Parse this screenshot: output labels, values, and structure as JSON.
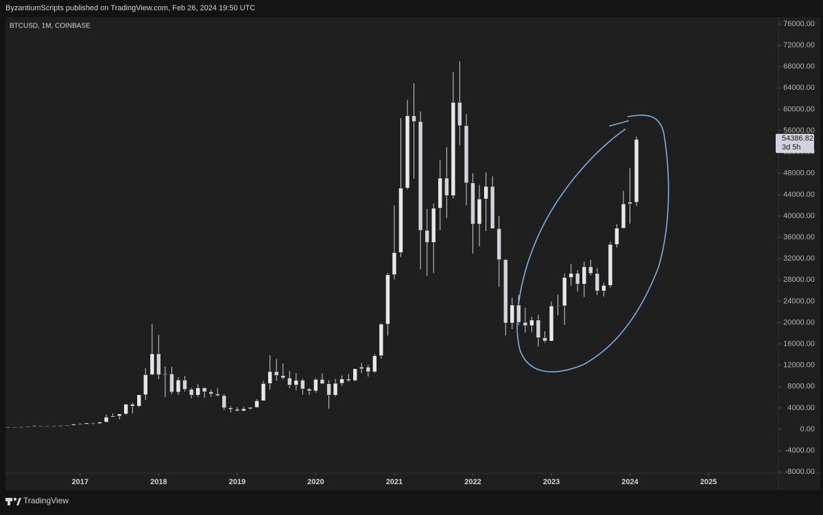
{
  "header": {
    "text": "ByzantiumScripts published on TradingView.com, Feb 26, 2024 19:50 UTC"
  },
  "footer": {
    "brand": "TradingView"
  },
  "chart_data": {
    "type": "candlestick",
    "title": "BTCUSD, 1M, COINBASE",
    "up_color": "#e8e8ec",
    "down_color": "#d1d4dc",
    "wick_color": "#d1d4dc",
    "grid": false,
    "xlim": [
      2016.05,
      2025.89
    ],
    "xticks": [
      2017,
      2018,
      2019,
      2020,
      2021,
      2022,
      2023,
      2024,
      2025
    ],
    "ylim": [
      -8230,
      77290
    ],
    "yticks": [
      {
        "value": -8000,
        "label": "-8000.00"
      },
      {
        "value": -4000,
        "label": "-4000.00"
      },
      {
        "value": 0,
        "label": "0.00"
      },
      {
        "value": 4000,
        "label": "4000.00"
      },
      {
        "value": 8000,
        "label": "8000.00"
      },
      {
        "value": 12000,
        "label": "12000.00"
      },
      {
        "value": 16000,
        "label": "16000.00"
      },
      {
        "value": 20000,
        "label": "20000.00"
      },
      {
        "value": 24000,
        "label": "24000.00"
      },
      {
        "value": 28000,
        "label": "28000.00"
      },
      {
        "value": 32000,
        "label": "32000.00"
      },
      {
        "value": 36000,
        "label": "36000.00"
      },
      {
        "value": 40000,
        "label": "40000.00"
      },
      {
        "value": 44000,
        "label": "44000.00"
      },
      {
        "value": 48000,
        "label": "48000.00"
      },
      {
        "value": 52000,
        "label": "52000.00"
      },
      {
        "value": 56000,
        "label": "56000.00"
      },
      {
        "value": 60000,
        "label": "60000.00"
      },
      {
        "value": 64000,
        "label": "64000.00"
      },
      {
        "value": 68000,
        "label": "68000.00"
      },
      {
        "value": 72000,
        "label": "72000.00"
      },
      {
        "value": 76000,
        "label": "76000.00"
      }
    ],
    "last_price": {
      "value": 54386.82,
      "label": "54386.82"
    },
    "countdown": "3d 5h",
    "x": [
      2016.083,
      2016.167,
      2016.25,
      2016.333,
      2016.417,
      2016.5,
      2016.583,
      2016.667,
      2016.75,
      2016.833,
      2016.917,
      2017.0,
      2017.083,
      2017.167,
      2017.25,
      2017.333,
      2017.417,
      2017.5,
      2017.583,
      2017.667,
      2017.75,
      2017.833,
      2017.917,
      2018.0,
      2018.083,
      2018.167,
      2018.25,
      2018.333,
      2018.417,
      2018.5,
      2018.583,
      2018.667,
      2018.75,
      2018.833,
      2018.917,
      2019.0,
      2019.083,
      2019.167,
      2019.25,
      2019.333,
      2019.417,
      2019.5,
      2019.583,
      2019.667,
      2019.75,
      2019.833,
      2019.917,
      2020.0,
      2020.083,
      2020.167,
      2020.25,
      2020.333,
      2020.417,
      2020.5,
      2020.583,
      2020.667,
      2020.75,
      2020.833,
      2020.917,
      2021.0,
      2021.083,
      2021.167,
      2021.25,
      2021.333,
      2021.417,
      2021.5,
      2021.583,
      2021.667,
      2021.75,
      2021.833,
      2021.917,
      2022.0,
      2022.083,
      2022.167,
      2022.25,
      2022.333,
      2022.417,
      2022.5,
      2022.583,
      2022.667,
      2022.75,
      2022.833,
      2022.917,
      2023.0,
      2023.083,
      2023.167,
      2023.25,
      2023.333,
      2023.417,
      2023.5,
      2023.583,
      2023.667,
      2023.75,
      2023.833,
      2023.917,
      2024.0,
      2024.083
    ],
    "open": [
      369,
      437,
      416,
      448,
      531,
      673,
      624,
      573,
      609,
      701,
      743,
      964,
      971,
      1191,
      1080,
      1348,
      2286,
      2480,
      2875,
      4703,
      4338,
      6468,
      10233,
      14156,
      10221,
      10397,
      6973,
      9240,
      7494,
      6404,
      7780,
      7037,
      6625,
      6318,
      4017,
      3742,
      3457,
      3854,
      4105,
      5350,
      8574,
      10818,
      10085,
      9630,
      8293,
      9199,
      7569,
      7194,
      9350,
      8543,
      6410,
      8624,
      9446,
      9138,
      11351,
      11655,
      10779,
      13805,
      19713,
      28990,
      33140,
      45240,
      58800,
      57720,
      37300,
      35040,
      41460,
      47100,
      43820,
      61300,
      56950,
      46210,
      38470,
      43190,
      45540,
      37630,
      31800,
      19930,
      23300,
      20050,
      19430,
      20490,
      17170,
      16540,
      23130,
      23150,
      28470,
      29250,
      27220,
      30480,
      29230,
      25930,
      26970,
      34660,
      37720,
      42280,
      42580
    ],
    "high": [
      448,
      439,
      469,
      548,
      779,
      704,
      626,
      628,
      741,
      755,
      979,
      1154,
      1211,
      1290,
      1350,
      2763,
      2980,
      2916,
      4736,
      4975,
      6470,
      11517,
      19783,
      17712,
      11789,
      11711,
      9759,
      9990,
      7760,
      8450,
      7780,
      7410,
      7700,
      6600,
      4310,
      4110,
      4200,
      4140,
      5640,
      9070,
      13880,
      13200,
      12330,
      10950,
      10540,
      9510,
      7750,
      9580,
      10500,
      9190,
      9470,
      10080,
      10390,
      11450,
      12470,
      12080,
      14100,
      19950,
      29300,
      41950,
      58350,
      61790,
      64900,
      59600,
      41330,
      42320,
      50500,
      52940,
      67000,
      69000,
      59120,
      47990,
      45820,
      48190,
      47440,
      40000,
      31960,
      24670,
      25200,
      22800,
      21100,
      21480,
      18390,
      23960,
      25250,
      29190,
      31000,
      29830,
      31430,
      31800,
      30200,
      27490,
      35200,
      38450,
      44700,
      48970,
      54900
    ],
    "low": [
      366,
      393,
      413,
      435,
      511,
      604,
      472,
      570,
      604,
      685,
      740,
      785,
      934,
      892,
      1070,
      1348,
      2300,
      1840,
      2720,
      2990,
      4160,
      5520,
      10233,
      9400,
      6048,
      6600,
      6430,
      7100,
      5780,
      6070,
      5880,
      6100,
      6200,
      3600,
      3150,
      3350,
      3390,
      3730,
      4070,
      5330,
      7450,
      9070,
      9320,
      7710,
      7300,
      6520,
      6430,
      6870,
      8450,
      3850,
      6150,
      8120,
      8900,
      8980,
      10520,
      9880,
      10540,
      13220,
      17570,
      28130,
      32300,
      45000,
      47000,
      30000,
      28800,
      29280,
      37330,
      39600,
      43280,
      53250,
      42000,
      32950,
      34320,
      37170,
      37700,
      26700,
      17600,
      18780,
      19520,
      18150,
      18190,
      15480,
      16250,
      16500,
      21350,
      19550,
      26940,
      25800,
      24800,
      28860,
      25170,
      24900,
      26560,
      34100,
      37640,
      38550,
      41880
    ],
    "close": [
      437,
      416,
      448,
      531,
      673,
      624,
      573,
      609,
      701,
      743,
      964,
      971,
      1191,
      1080,
      1348,
      2286,
      2480,
      2875,
      4703,
      4338,
      6468,
      10233,
      14156,
      10221,
      10397,
      6973,
      9240,
      7494,
      6404,
      7780,
      7037,
      6625,
      6318,
      4017,
      3742,
      3457,
      3854,
      4105,
      5350,
      8574,
      10818,
      10085,
      9630,
      8293,
      9199,
      7569,
      7194,
      9350,
      8543,
      6410,
      8624,
      9446,
      9138,
      11351,
      11655,
      10779,
      13805,
      19713,
      28990,
      33140,
      45240,
      58800,
      57720,
      37300,
      35040,
      41460,
      47100,
      43820,
      61300,
      56950,
      46210,
      38470,
      43190,
      45540,
      37630,
      31800,
      19930,
      23300,
      20050,
      19430,
      20490,
      17170,
      16540,
      23130,
      23150,
      28470,
      29250,
      27220,
      30480,
      29230,
      25930,
      26970,
      34660,
      37720,
      42280,
      42580,
      54386.82
    ]
  }
}
